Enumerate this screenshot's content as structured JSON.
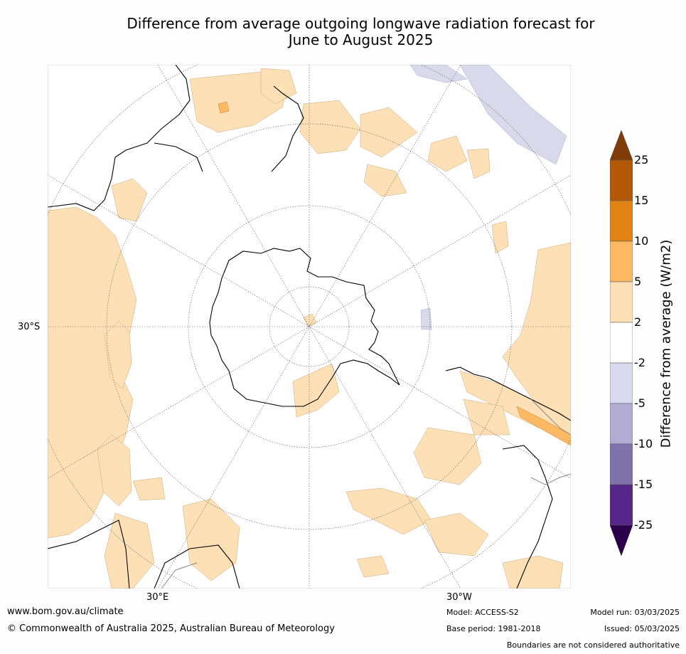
{
  "title_line1": "Difference from average outgoing longwave radiation forecast for",
  "title_line2": "June to August 2025",
  "map": {
    "lat_label": "30°S",
    "lon_labels": [
      "30°E",
      "30°W"
    ]
  },
  "colorbar": {
    "label": "Difference from average (W/m2)",
    "ticks": [
      "25",
      "15",
      "10",
      "5",
      "2",
      "-2",
      "-5",
      "-10",
      "-15",
      "-25"
    ],
    "bin_colors": [
      "#7f3b08",
      "#b35806",
      "#e08214",
      "#fdb863",
      "#fee0b6",
      "#ffffff",
      "#d8daeb",
      "#b2abd2",
      "#8073ac",
      "#542788",
      "#2d004b"
    ]
  },
  "footer": {
    "url": "www.bom.gov.au/climate",
    "copyright": "© Commonwealth of Australia 2025, Australian Bureau of Meteorology",
    "model": "Model: ACCESS-S2",
    "base_period": "Base period: 1981-2018",
    "model_run": "Model run: 03/03/2025",
    "issued": "Issued: 05/03/2025",
    "disclaimer": "Boundaries are not considered authoritative"
  }
}
